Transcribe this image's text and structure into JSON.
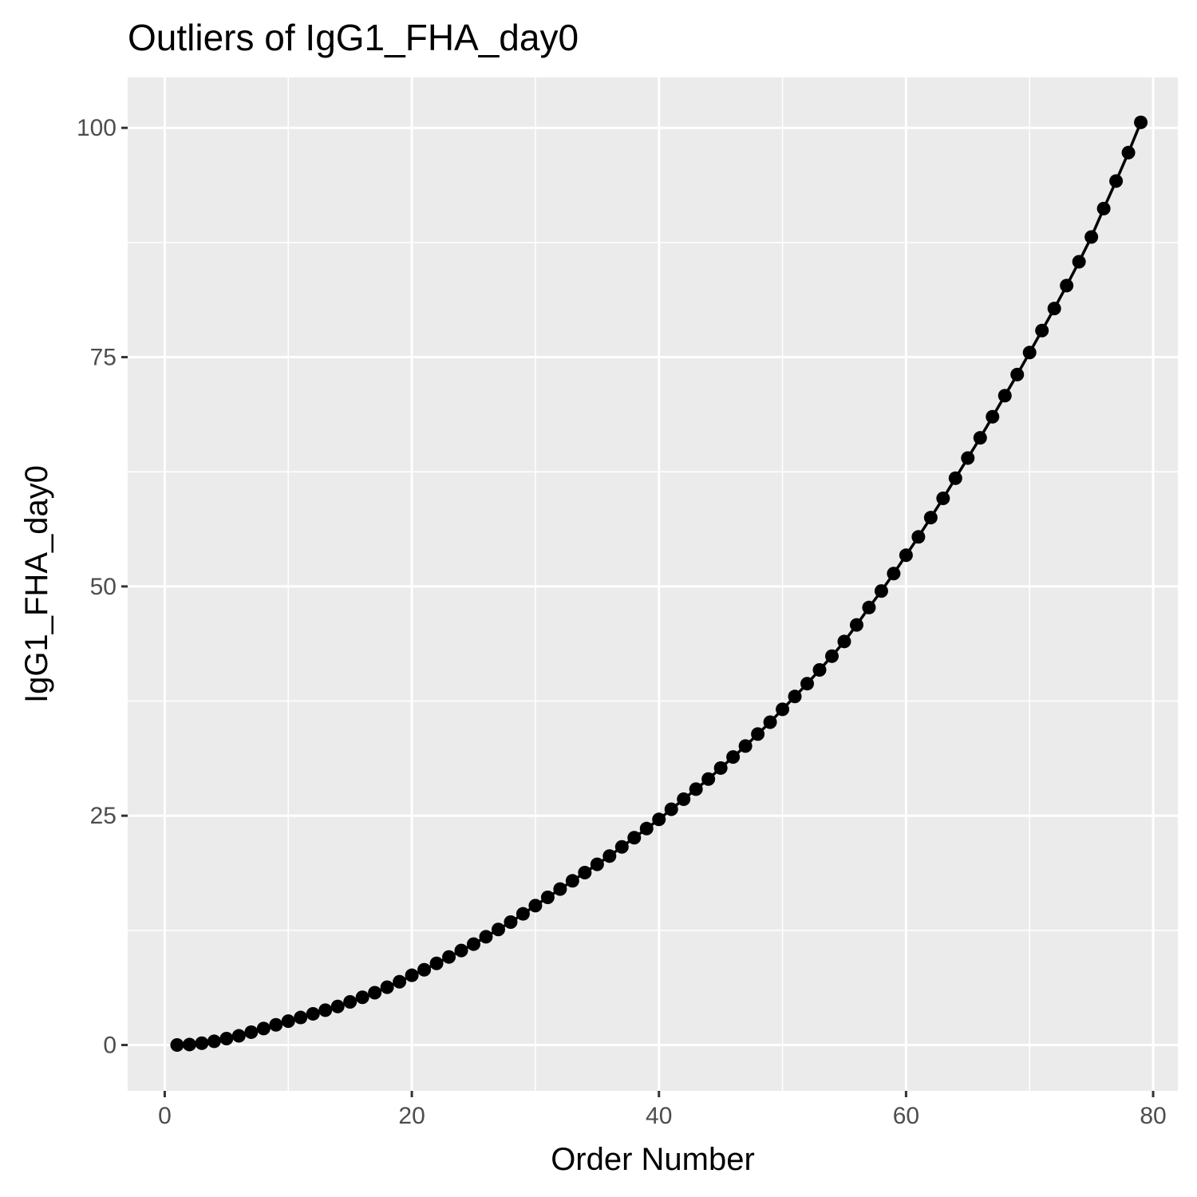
{
  "chart_data": {
    "type": "line",
    "title": "Outliers of IgG1_FHA_day0",
    "xlabel": "Order Number",
    "ylabel": "IgG1_FHA_day0",
    "xlim": [
      -3,
      82
    ],
    "ylim": [
      -5,
      105.5
    ],
    "x_ticks": [
      0,
      20,
      40,
      60,
      80
    ],
    "y_ticks": [
      0,
      25,
      50,
      75,
      100
    ],
    "x_tick_labels": [
      "0",
      "20",
      "40",
      "60",
      "80"
    ],
    "y_tick_labels": [
      "0",
      "25",
      "50",
      "75",
      "100"
    ],
    "x_minor_ticks": [
      10,
      30,
      50,
      70
    ],
    "y_minor_ticks": [
      12.5,
      37.5,
      62.5,
      87.5
    ],
    "grid": true,
    "markers": true,
    "series": [
      {
        "color": "#000000",
        "x": [
          1,
          2,
          3,
          4,
          5,
          6,
          7,
          8,
          9,
          10,
          11,
          12,
          13,
          14,
          15,
          16,
          17,
          18,
          19,
          20,
          21,
          22,
          23,
          24,
          25,
          26,
          27,
          28,
          29,
          30,
          31,
          32,
          33,
          34,
          35,
          36,
          37,
          38,
          39,
          40,
          41,
          42,
          43,
          44,
          45,
          46,
          47,
          48,
          49,
          50,
          51,
          52,
          53,
          54,
          55,
          56,
          57,
          58,
          59,
          60,
          61,
          62,
          63,
          64,
          65,
          66,
          67,
          68,
          69,
          70,
          71,
          72,
          73,
          74,
          75,
          76,
          77,
          78,
          79
        ],
        "y": [
          0.0,
          0.05,
          0.2,
          0.4,
          0.7,
          1.0,
          1.4,
          1.8,
          2.2,
          2.6,
          3.0,
          3.4,
          3.8,
          4.2,
          4.7,
          5.2,
          5.7,
          6.3,
          6.9,
          7.6,
          8.2,
          8.9,
          9.6,
          10.3,
          11.0,
          11.8,
          12.6,
          13.4,
          14.3,
          15.2,
          16.1,
          17.0,
          17.9,
          18.8,
          19.7,
          20.6,
          21.6,
          22.6,
          23.6,
          24.6,
          25.7,
          26.8,
          27.9,
          29.0,
          30.2,
          31.4,
          32.6,
          33.9,
          35.2,
          36.6,
          38.0,
          39.4,
          40.9,
          42.4,
          44.0,
          45.8,
          47.7,
          49.5,
          51.4,
          53.4,
          55.4,
          57.5,
          59.6,
          61.8,
          64.0,
          66.2,
          68.5,
          70.8,
          73.1,
          75.5,
          77.9,
          80.3,
          82.8,
          85.4,
          88.1,
          91.2,
          94.2,
          97.3,
          100.6
        ]
      }
    ]
  }
}
